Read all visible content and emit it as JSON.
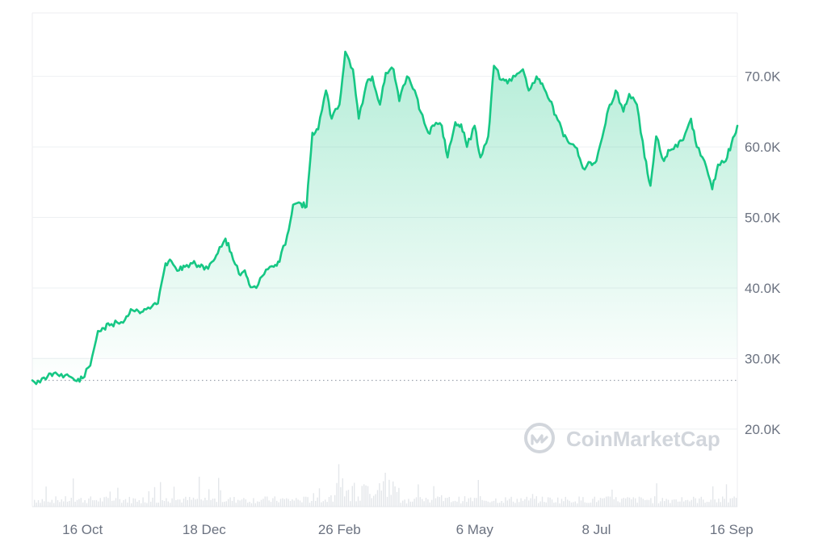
{
  "chart_data": {
    "type": "area",
    "y_tick_labels": [
      "70.0K",
      "60.0K",
      "50.0K",
      "40.0K",
      "30.0K",
      "20.0K"
    ],
    "y_ticks": [
      70000,
      60000,
      50000,
      40000,
      30000,
      20000
    ],
    "x_tick_labels": [
      "16 Oct",
      "18 Dec",
      "26 Feb",
      "6 May",
      "8 Jul",
      "16 Sep"
    ],
    "x_tick_dates": [
      "2023-10-16",
      "2023-12-18",
      "2024-02-26",
      "2024-05-06",
      "2024-07-08",
      "2024-09-16"
    ],
    "ylim": [
      9000,
      79000
    ],
    "xlim": [
      "2023-09-20",
      "2024-09-19"
    ],
    "baseline_value": 26900,
    "grid": true,
    "line_color": "#16c784",
    "below_baseline_color": "#ea3943",
    "series": [
      {
        "dates": [
          "2023-09-20",
          "2023-09-24",
          "2023-09-28",
          "2023-10-01",
          "2023-10-05",
          "2023-10-09",
          "2023-10-13",
          "2023-10-16",
          "2023-10-20",
          "2023-10-24",
          "2023-10-27",
          "2023-10-30",
          "2023-11-03",
          "2023-11-07",
          "2023-11-10",
          "2023-11-14",
          "2023-11-17",
          "2023-11-21",
          "2023-11-24",
          "2023-11-28",
          "2023-12-01",
          "2023-12-05",
          "2023-12-08",
          "2023-12-12",
          "2023-12-15",
          "2023-12-18",
          "2023-12-22",
          "2023-12-25",
          "2023-12-29",
          "2024-01-01",
          "2024-01-05",
          "2024-01-08",
          "2024-01-11",
          "2024-01-15",
          "2024-01-19",
          "2024-01-23",
          "2024-01-26",
          "2024-01-30",
          "2024-02-02",
          "2024-02-06",
          "2024-02-09",
          "2024-02-12",
          "2024-02-15",
          "2024-02-19",
          "2024-02-22",
          "2024-02-26",
          "2024-02-29",
          "2024-03-04",
          "2024-03-07",
          "2024-03-11",
          "2024-03-14",
          "2024-03-18",
          "2024-03-21",
          "2024-03-25",
          "2024-03-28",
          "2024-04-01",
          "2024-04-05",
          "2024-04-08",
          "2024-04-12",
          "2024-04-15",
          "2024-04-19",
          "2024-04-22",
          "2024-04-26",
          "2024-04-29",
          "2024-05-02",
          "2024-05-06",
          "2024-05-09",
          "2024-05-13",
          "2024-05-16",
          "2024-05-20",
          "2024-05-23",
          "2024-05-27",
          "2024-05-31",
          "2024-06-03",
          "2024-06-07",
          "2024-06-10",
          "2024-06-14",
          "2024-06-17",
          "2024-06-21",
          "2024-06-24",
          "2024-06-28",
          "2024-07-01",
          "2024-07-05",
          "2024-07-08",
          "2024-07-12",
          "2024-07-15",
          "2024-07-18",
          "2024-07-22",
          "2024-07-25",
          "2024-07-29",
          "2024-08-02",
          "2024-08-05",
          "2024-08-08",
          "2024-08-12",
          "2024-08-15",
          "2024-08-19",
          "2024-08-22",
          "2024-08-26",
          "2024-08-29",
          "2024-09-02",
          "2024-09-06",
          "2024-09-09",
          "2024-09-13",
          "2024-09-16",
          "2024-09-19"
        ],
        "values": [
          26900,
          26600,
          27500,
          27900,
          27800,
          27500,
          26800,
          27200,
          29000,
          33900,
          34300,
          34700,
          35100,
          35500,
          37000,
          36700,
          37000,
          37400,
          37800,
          43500,
          43800,
          42500,
          43000,
          43500,
          43200,
          42600,
          43700,
          44900,
          47000,
          45000,
          42000,
          42500,
          40100,
          40500,
          42600,
          43000,
          43700,
          47500,
          51800,
          52000,
          51500,
          62000,
          62500,
          68000,
          64000,
          66000,
          73500,
          71000,
          64000,
          69000,
          70000,
          66000,
          70500,
          71000,
          66500,
          70000,
          68000,
          65000,
          62000,
          63000,
          63000,
          58500,
          63500,
          63200,
          60000,
          63000,
          58500,
          61500,
          71500,
          69500,
          69000,
          70000,
          71000,
          68000,
          70000,
          69000,
          66500,
          64500,
          61500,
          60500,
          59800,
          57000,
          57800,
          58000,
          62500,
          66000,
          68000,
          65000,
          67500,
          66000,
          58500,
          54500,
          61500,
          58000,
          59500,
          60000,
          61000,
          64000,
          60000,
          58000,
          54000,
          57500,
          58000,
          60500,
          63000
        ]
      }
    ]
  },
  "watermark": {
    "text": "CoinMarketCap",
    "icon": "coinmarketcap-logo-icon"
  }
}
